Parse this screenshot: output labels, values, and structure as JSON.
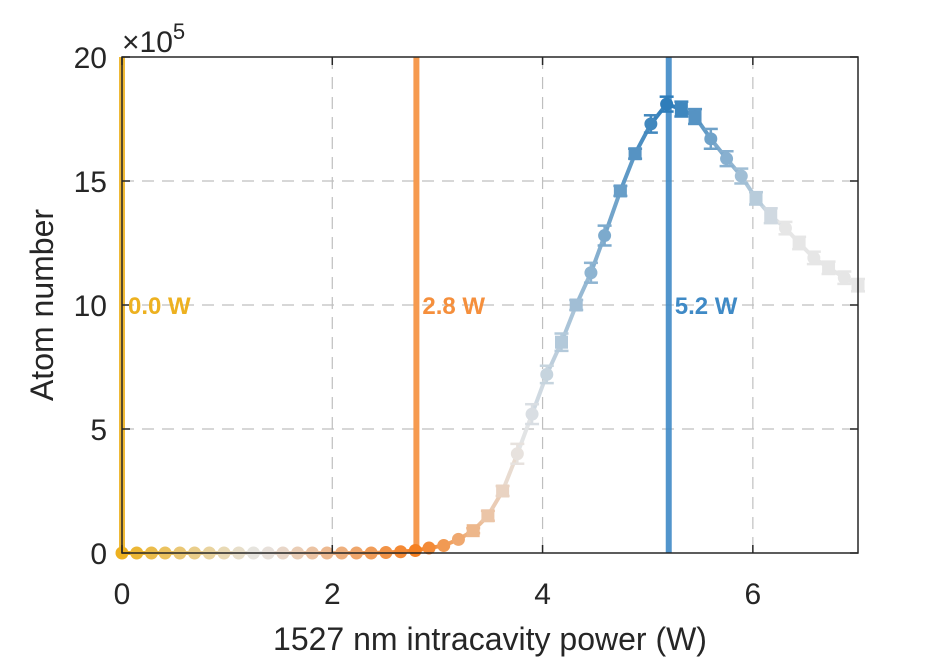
{
  "chart_data": {
    "type": "scatter",
    "xlabel": "1527 nm intracavity power (W)",
    "ylabel": "Atom number",
    "scale_label": "×10",
    "scale_exponent": "5",
    "xlim": [
      0,
      7
    ],
    "ylim": [
      0,
      20
    ],
    "xticks": [
      0,
      2,
      4,
      6
    ],
    "xtick_labels": [
      "0",
      "2",
      "4",
      "6"
    ],
    "yticks": [
      0,
      5,
      10,
      15,
      20
    ],
    "ytick_labels": [
      "0",
      "5",
      "10",
      "15",
      "20"
    ],
    "grid": true,
    "colors": {
      "yellow": "#EDB120",
      "light": "#E6E6E6",
      "orange": "#F57F20",
      "blue": "#2B7BB9",
      "axis": "#262626",
      "grid": "#BFBFBF"
    },
    "markers": [
      {
        "x": 7.0,
        "y": 10.8,
        "err": 0.25,
        "marker": "square"
      },
      {
        "x": 6.87,
        "y": 11.1,
        "err": 0.25,
        "marker": "circle"
      },
      {
        "x": 6.72,
        "y": 11.5,
        "err": 0.25,
        "marker": "square"
      },
      {
        "x": 6.58,
        "y": 11.9,
        "err": 0.25,
        "marker": "circle"
      },
      {
        "x": 6.44,
        "y": 12.5,
        "err": 0.25,
        "marker": "square"
      },
      {
        "x": 6.31,
        "y": 13.1,
        "err": 0.25,
        "marker": "circle"
      },
      {
        "x": 6.17,
        "y": 13.6,
        "err": 0.3,
        "marker": "square"
      },
      {
        "x": 6.03,
        "y": 14.3,
        "err": 0.25,
        "marker": "square"
      },
      {
        "x": 5.89,
        "y": 15.2,
        "err": 0.3,
        "marker": "circle"
      },
      {
        "x": 5.75,
        "y": 15.9,
        "err": 0.3,
        "marker": "circle"
      },
      {
        "x": 5.6,
        "y": 16.7,
        "err": 0.4,
        "marker": "circle"
      },
      {
        "x": 5.45,
        "y": 17.6,
        "err": 0.3,
        "marker": "square"
      },
      {
        "x": 5.32,
        "y": 17.9,
        "err": 0.3,
        "marker": "square"
      },
      {
        "x": 5.18,
        "y": 18.1,
        "err": 0.3,
        "marker": "circle"
      },
      {
        "x": 5.03,
        "y": 17.3,
        "err": 0.35,
        "marker": "circle"
      },
      {
        "x": 4.88,
        "y": 16.1,
        "err": 0.2,
        "marker": "square"
      },
      {
        "x": 4.74,
        "y": 14.6,
        "err": 0.2,
        "marker": "square"
      },
      {
        "x": 4.59,
        "y": 12.8,
        "err": 0.4,
        "marker": "circle"
      },
      {
        "x": 4.46,
        "y": 11.3,
        "err": 0.4,
        "marker": "circle"
      },
      {
        "x": 4.32,
        "y": 10.0,
        "err": 0.2,
        "marker": "square"
      },
      {
        "x": 4.18,
        "y": 8.5,
        "err": 0.35,
        "marker": "square"
      },
      {
        "x": 4.04,
        "y": 7.2,
        "err": 0.35,
        "marker": "circle"
      },
      {
        "x": 3.9,
        "y": 5.6,
        "err": 0.4,
        "marker": "circle"
      },
      {
        "x": 3.76,
        "y": 4.0,
        "err": 0.4,
        "marker": "circle"
      },
      {
        "x": 3.62,
        "y": 2.5,
        "err": 0.2,
        "marker": "square"
      },
      {
        "x": 3.48,
        "y": 1.5,
        "err": 0.2,
        "marker": "square"
      },
      {
        "x": 3.34,
        "y": 0.9,
        "err": 0.1,
        "marker": "square"
      },
      {
        "x": 3.2,
        "y": 0.55,
        "err": 0,
        "marker": "circle"
      },
      {
        "x": 3.06,
        "y": 0.3,
        "err": 0,
        "marker": "circle"
      },
      {
        "x": 2.92,
        "y": 0.2,
        "err": 0,
        "marker": "circle"
      },
      {
        "x": 2.79,
        "y": 0.1,
        "err": 0,
        "marker": "circle"
      },
      {
        "x": 2.65,
        "y": 0.05,
        "err": 0,
        "marker": "circle"
      },
      {
        "x": 2.51,
        "y": 0.02,
        "err": 0,
        "marker": "circle"
      },
      {
        "x": 2.37,
        "y": 0.0,
        "err": 0,
        "marker": "circle"
      },
      {
        "x": 2.23,
        "y": 0.0,
        "err": 0,
        "marker": "circle"
      },
      {
        "x": 2.09,
        "y": 0.0,
        "err": 0,
        "marker": "circle"
      },
      {
        "x": 1.95,
        "y": 0.0,
        "err": 0,
        "marker": "circle"
      },
      {
        "x": 1.81,
        "y": 0.0,
        "err": 0,
        "marker": "circle"
      },
      {
        "x": 1.67,
        "y": 0.0,
        "err": 0,
        "marker": "circle"
      },
      {
        "x": 1.53,
        "y": 0.0,
        "err": 0,
        "marker": "circle"
      },
      {
        "x": 1.39,
        "y": 0.0,
        "err": 0,
        "marker": "circle"
      },
      {
        "x": 1.25,
        "y": 0.0,
        "err": 0,
        "marker": "circle"
      },
      {
        "x": 1.11,
        "y": 0.0,
        "err": 0,
        "marker": "circle"
      },
      {
        "x": 0.97,
        "y": 0.0,
        "err": 0,
        "marker": "circle"
      },
      {
        "x": 0.83,
        "y": 0.0,
        "err": 0,
        "marker": "circle"
      },
      {
        "x": 0.69,
        "y": 0.0,
        "err": 0,
        "marker": "circle"
      },
      {
        "x": 0.55,
        "y": 0.0,
        "err": 0,
        "marker": "circle"
      },
      {
        "x": 0.41,
        "y": 0.0,
        "err": 0,
        "marker": "circle"
      },
      {
        "x": 0.28,
        "y": 0.0,
        "err": 0,
        "marker": "circle"
      },
      {
        "x": 0.14,
        "y": 0.0,
        "err": 0,
        "marker": "circle"
      },
      {
        "x": 0.0,
        "y": 0.0,
        "err": 0,
        "marker": "circle"
      }
    ],
    "vlines": [
      {
        "x": 0.0,
        "label": "0.0 W",
        "color": "#EDB120"
      },
      {
        "x": 2.8,
        "label": "2.8 W",
        "color": "#F58F3C"
      },
      {
        "x": 5.2,
        "label": "5.2 W",
        "color": "#3F8AC6"
      }
    ]
  }
}
